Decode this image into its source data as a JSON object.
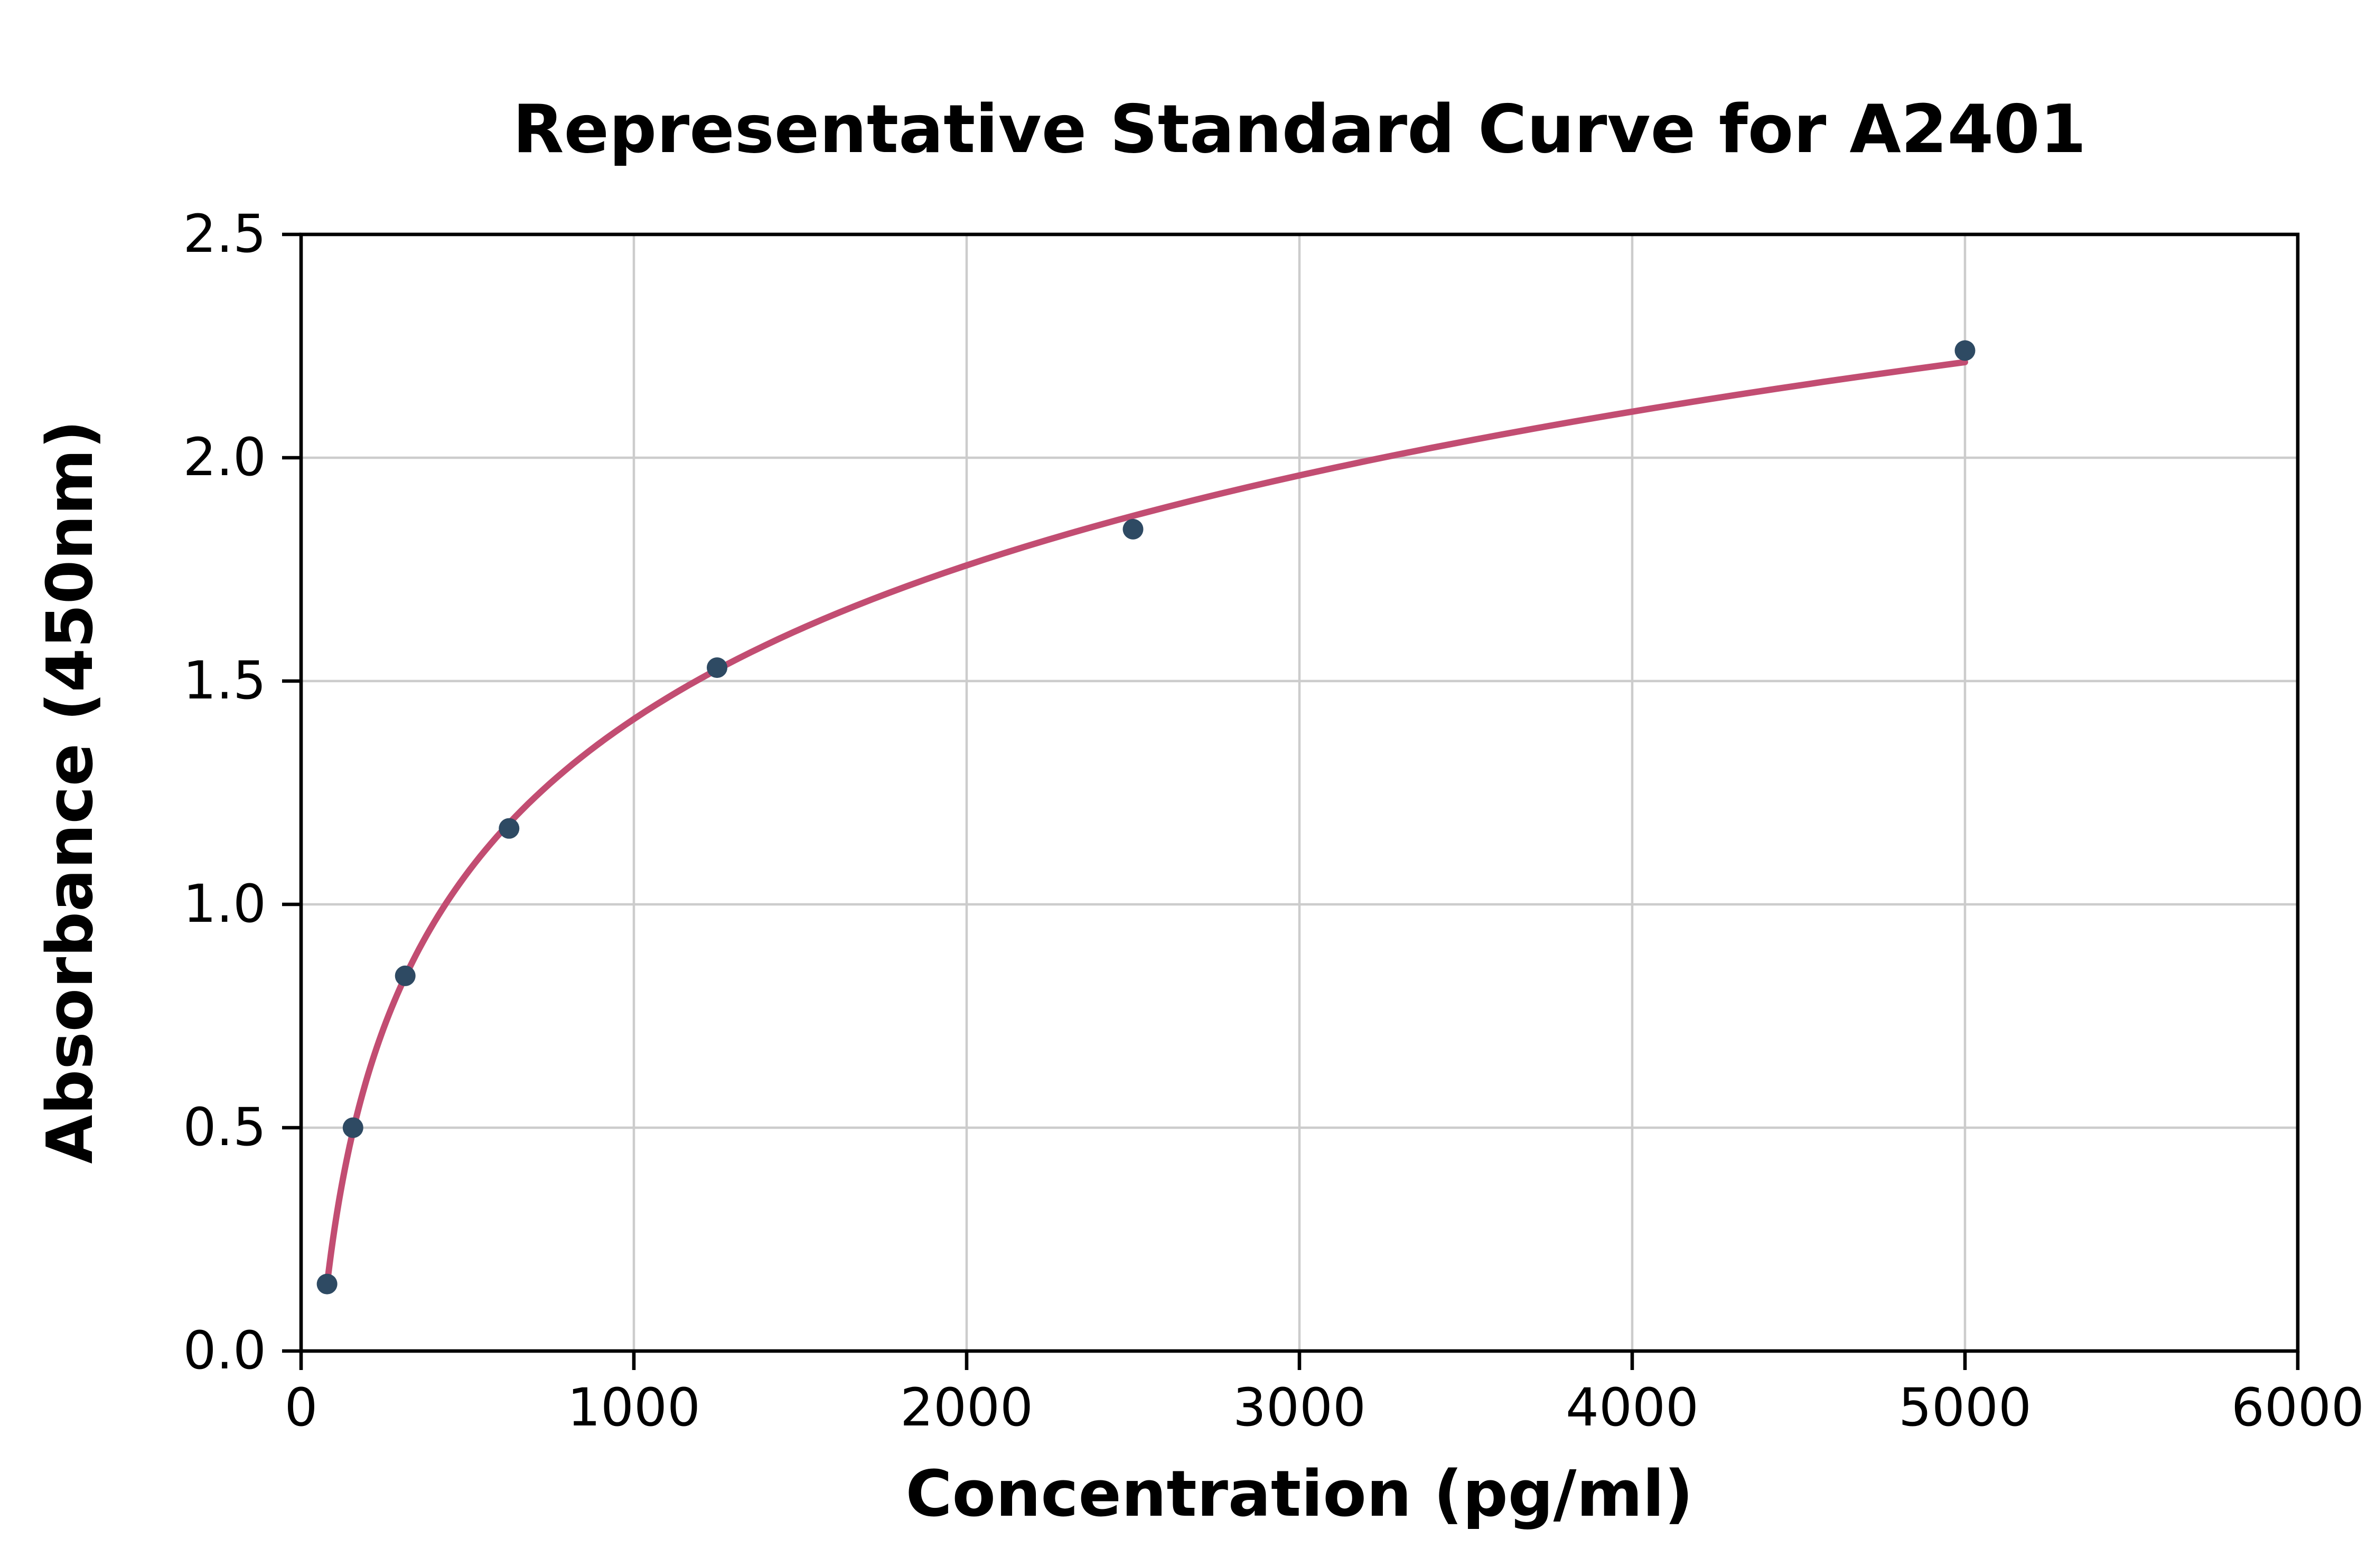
{
  "chart_data": {
    "type": "scatter",
    "title": "Representative Standard Curve for A2401",
    "xlabel": "Concentration (pg/ml)",
    "ylabel": "Absorbance (450nm)",
    "xlim": [
      0,
      6000
    ],
    "ylim": [
      0,
      2.5
    ],
    "xticks": [
      0,
      1000,
      2000,
      3000,
      4000,
      5000,
      6000
    ],
    "xtick_labels": [
      "0",
      "1000",
      "2000",
      "3000",
      "4000",
      "5000",
      "6000"
    ],
    "yticks": [
      0,
      0.5,
      1.0,
      1.5,
      2.0,
      2.5
    ],
    "ytick_labels": [
      "0.0",
      "0.5",
      "1.0",
      "1.5",
      "2.0",
      "2.5"
    ],
    "grid": true,
    "legend": "none",
    "fit": "logarithmic",
    "points": [
      {
        "x": 78,
        "y": 0.15
      },
      {
        "x": 156,
        "y": 0.5
      },
      {
        "x": 313,
        "y": 0.84
      },
      {
        "x": 625,
        "y": 1.17
      },
      {
        "x": 1250,
        "y": 1.53
      },
      {
        "x": 2500,
        "y": 1.84
      },
      {
        "x": 5000,
        "y": 2.24
      }
    ],
    "colors": {
      "curve": "#c24d72",
      "points": "#2e4a63",
      "grid": "#cccccc",
      "axis": "#000000",
      "background": "#ffffff"
    }
  }
}
